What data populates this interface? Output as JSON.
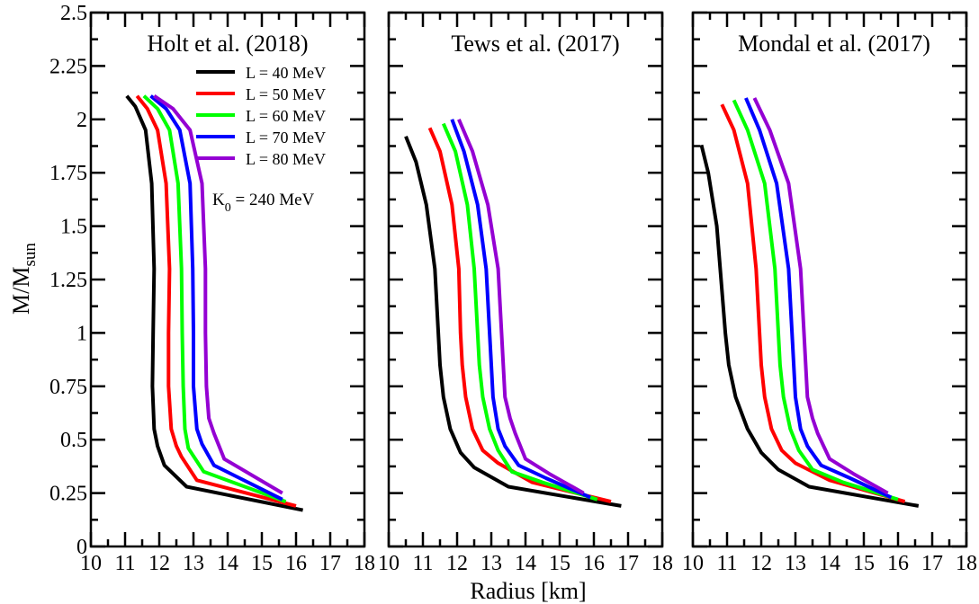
{
  "y_axis_label": "M/M",
  "y_axis_label_sub": "sun",
  "x_axis_label": "Radius [km]",
  "annotation": {
    "text": "K",
    "sub": "0",
    "rest": " = 240 MeV"
  },
  "colors": {
    "L40": "#000000",
    "L50": "#ff0000",
    "L60": "#00ff00",
    "L70": "#0000ff",
    "L80": "#9400d3"
  },
  "chart_data": [
    {
      "type": "line",
      "title": "Holt et al. (2018)",
      "xlim": [
        10,
        18
      ],
      "ylim": [
        0,
        2.5
      ],
      "xticks": [
        "10",
        "11",
        "12",
        "13",
        "14",
        "15",
        "16",
        "17",
        "18"
      ],
      "yticks": [
        "0",
        "0.25",
        "0.5",
        "0.75",
        "1",
        "1.25",
        "1.5",
        "1.75",
        "2",
        "2.25",
        "2.5"
      ],
      "legend": [
        "L = 40 MeV",
        "L = 50 MeV",
        "L = 60 MeV",
        "L = 70 MeV",
        "L = 80 MeV"
      ],
      "series": [
        {
          "name": "L = 40 MeV",
          "color": "#000000",
          "x": [
            11.05,
            11.3,
            11.6,
            11.78,
            11.85,
            11.82,
            11.8,
            11.85,
            11.95,
            12.15,
            12.8,
            16.2
          ],
          "y": [
            2.11,
            2.06,
            1.95,
            1.7,
            1.3,
            1.0,
            0.75,
            0.55,
            0.47,
            0.38,
            0.28,
            0.17
          ]
        },
        {
          "name": "L = 50 MeV",
          "color": "#ff0000",
          "x": [
            11.35,
            11.65,
            11.95,
            12.2,
            12.3,
            12.27,
            12.27,
            12.35,
            12.5,
            12.65,
            13.1,
            16.0
          ],
          "y": [
            2.11,
            2.05,
            1.95,
            1.7,
            1.3,
            1.0,
            0.75,
            0.55,
            0.47,
            0.42,
            0.31,
            0.19
          ]
        },
        {
          "name": "L = 60 MeV",
          "color": "#00ff00",
          "x": [
            11.55,
            11.95,
            12.3,
            12.55,
            12.65,
            12.67,
            12.7,
            12.75,
            12.85,
            13.3,
            15.7
          ],
          "y": [
            2.11,
            2.05,
            1.95,
            1.7,
            1.3,
            1.0,
            0.75,
            0.55,
            0.46,
            0.35,
            0.21
          ]
        },
        {
          "name": "L = 70 MeV",
          "color": "#0000ff",
          "x": [
            11.75,
            12.2,
            12.6,
            12.9,
            12.98,
            13.0,
            13.0,
            13.1,
            13.25,
            13.6,
            15.6
          ],
          "y": [
            2.11,
            2.05,
            1.95,
            1.7,
            1.3,
            1.0,
            0.75,
            0.55,
            0.48,
            0.38,
            0.22
          ]
        },
        {
          "name": "L = 80 MeV",
          "color": "#9400d3",
          "x": [
            11.85,
            12.4,
            12.9,
            13.25,
            13.35,
            13.35,
            13.38,
            13.45,
            13.6,
            13.9,
            15.6
          ],
          "y": [
            2.11,
            2.05,
            1.95,
            1.7,
            1.3,
            1.0,
            0.75,
            0.6,
            0.53,
            0.41,
            0.25
          ]
        }
      ]
    },
    {
      "type": "line",
      "title": "Tews et al. (2017)",
      "xlim": [
        10,
        18
      ],
      "ylim": [
        0,
        2.5
      ],
      "xticks": [
        "10",
        "11",
        "12",
        "13",
        "14",
        "15",
        "16",
        "17",
        "18"
      ],
      "yticks": [
        "0",
        "0.25",
        "0.5",
        "0.75",
        "1",
        "1.25",
        "1.5",
        "1.75",
        "2",
        "2.25",
        "2.5"
      ],
      "series": [
        {
          "name": "L = 40 MeV",
          "color": "#000000",
          "x": [
            10.5,
            10.8,
            11.1,
            11.35,
            11.45,
            11.5,
            11.6,
            11.8,
            12.1,
            12.5,
            13.5,
            16.8
          ],
          "y": [
            1.92,
            1.8,
            1.6,
            1.3,
            1.0,
            0.85,
            0.7,
            0.55,
            0.44,
            0.37,
            0.28,
            0.19
          ]
        },
        {
          "name": "L = 50 MeV",
          "color": "#ff0000",
          "x": [
            11.2,
            11.5,
            11.85,
            12.05,
            12.1,
            12.15,
            12.25,
            12.45,
            12.75,
            13.2,
            14.2,
            16.5
          ],
          "y": [
            1.96,
            1.85,
            1.6,
            1.3,
            1.0,
            0.85,
            0.7,
            0.55,
            0.45,
            0.39,
            0.3,
            0.21
          ]
        },
        {
          "name": "L = 60 MeV",
          "color": "#00ff00",
          "x": [
            11.6,
            11.95,
            12.3,
            12.5,
            12.6,
            12.65,
            12.75,
            12.95,
            13.2,
            13.6,
            14.5,
            16.1
          ],
          "y": [
            1.98,
            1.85,
            1.6,
            1.3,
            1.0,
            0.85,
            0.7,
            0.55,
            0.45,
            0.35,
            0.3,
            0.22
          ]
        },
        {
          "name": "L = 70 MeV",
          "color": "#0000ff",
          "x": [
            11.85,
            12.2,
            12.6,
            12.85,
            12.95,
            13.0,
            13.05,
            13.2,
            13.4,
            13.8,
            14.6,
            15.9
          ],
          "y": [
            2.0,
            1.85,
            1.6,
            1.3,
            1.0,
            0.85,
            0.7,
            0.55,
            0.47,
            0.38,
            0.32,
            0.23
          ]
        },
        {
          "name": "L = 80 MeV",
          "color": "#9400d3",
          "x": [
            12.05,
            12.45,
            12.9,
            13.2,
            13.3,
            13.35,
            13.4,
            13.55,
            13.7,
            14.0,
            14.7,
            15.7
          ],
          "y": [
            2.0,
            1.85,
            1.6,
            1.3,
            1.0,
            0.85,
            0.7,
            0.6,
            0.53,
            0.41,
            0.34,
            0.25
          ]
        }
      ]
    },
    {
      "type": "line",
      "title": "Mondal et al. (2017)",
      "xlim": [
        10,
        18
      ],
      "ylim": [
        0,
        2.5
      ],
      "xticks": [
        "10",
        "11",
        "12",
        "13",
        "14",
        "15",
        "16",
        "17",
        "18"
      ],
      "yticks": [
        "0",
        "0.25",
        "0.5",
        "0.75",
        "1",
        "1.25",
        "1.5",
        "1.75",
        "2",
        "2.25",
        "2.5"
      ],
      "series": [
        {
          "name": "L = 40 MeV",
          "color": "#000000",
          "x": [
            10.25,
            10.45,
            10.7,
            10.85,
            10.95,
            11.05,
            11.25,
            11.6,
            12.0,
            12.5,
            13.4,
            16.6
          ],
          "y": [
            1.88,
            1.75,
            1.5,
            1.2,
            1.0,
            0.85,
            0.7,
            0.55,
            0.44,
            0.36,
            0.28,
            0.19
          ]
        },
        {
          "name": "L = 50 MeV",
          "color": "#ff0000",
          "x": [
            10.85,
            11.2,
            11.6,
            11.85,
            11.95,
            12.0,
            12.1,
            12.3,
            12.6,
            13.0,
            14.0,
            16.2
          ],
          "y": [
            2.07,
            1.95,
            1.7,
            1.3,
            1.0,
            0.85,
            0.7,
            0.55,
            0.45,
            0.39,
            0.31,
            0.21
          ]
        },
        {
          "name": "L = 60 MeV",
          "color": "#00ff00",
          "x": [
            11.2,
            11.6,
            12.1,
            12.4,
            12.5,
            12.55,
            12.65,
            12.85,
            13.1,
            13.5,
            14.4,
            16.0
          ],
          "y": [
            2.09,
            1.95,
            1.7,
            1.3,
            1.0,
            0.85,
            0.7,
            0.55,
            0.45,
            0.36,
            0.3,
            0.22
          ]
        },
        {
          "name": "L = 70 MeV",
          "color": "#0000ff",
          "x": [
            11.55,
            11.95,
            12.45,
            12.8,
            12.9,
            12.95,
            13.0,
            13.15,
            13.35,
            13.75,
            14.6,
            15.8
          ],
          "y": [
            2.1,
            1.95,
            1.7,
            1.3,
            1.0,
            0.85,
            0.7,
            0.55,
            0.47,
            0.38,
            0.32,
            0.23
          ]
        },
        {
          "name": "L = 80 MeV",
          "color": "#9400d3",
          "x": [
            11.8,
            12.25,
            12.8,
            13.15,
            13.25,
            13.3,
            13.35,
            13.5,
            13.65,
            14.0,
            14.7,
            15.7
          ],
          "y": [
            2.1,
            1.95,
            1.7,
            1.3,
            1.0,
            0.85,
            0.7,
            0.6,
            0.53,
            0.41,
            0.34,
            0.25
          ]
        }
      ]
    }
  ]
}
